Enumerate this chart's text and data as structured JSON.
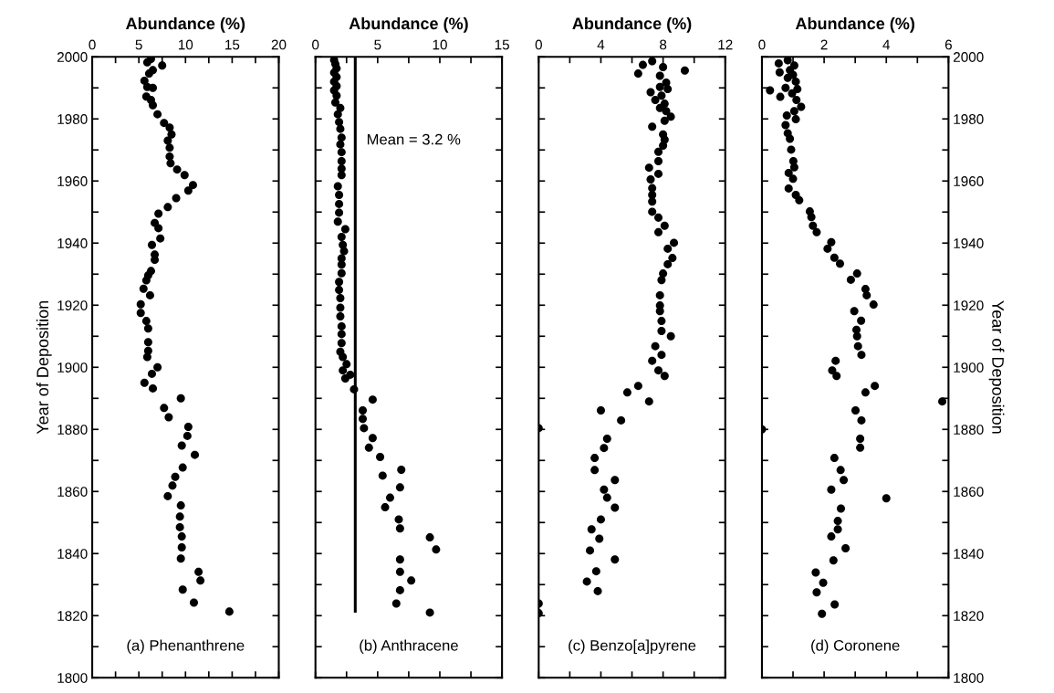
{
  "chart_data": [
    {
      "type": "scatter",
      "xlabel": "Abundance (%)",
      "ylabel": "Year of Deposition",
      "xlim": [
        0,
        20
      ],
      "xticks": [
        0,
        {
          "value": 2.5,
          "label": null
        },
        5,
        {
          "value": 7.5,
          "label": null
        },
        10,
        {
          "value": 12.5,
          "label": null
        },
        15,
        {
          "value": 17.5,
          "label": null
        },
        20
      ],
      "ylim": [
        1800,
        2000
      ],
      "yticks": [
        1800,
        {
          "value": 1810,
          "label": null
        },
        1820,
        {
          "value": 1830,
          "label": null
        },
        1840,
        {
          "value": 1850,
          "label": null
        },
        1860,
        {
          "value": 1870,
          "label": null
        },
        1880,
        {
          "value": 1890,
          "label": null
        },
        1900,
        {
          "value": 1910,
          "label": null
        },
        1920,
        {
          "value": 1930,
          "label": null
        },
        1940,
        {
          "value": 1950,
          "label": null
        },
        1960,
        {
          "value": 1970,
          "label": null
        },
        1980,
        {
          "value": 1990,
          "label": null
        },
        2000
      ],
      "marker": "circle",
      "grid": false,
      "annotations": [
        "(a) Phenanthrene"
      ],
      "series": [
        {
          "color": "#000000",
          "x": [
            6.3,
            5.9,
            7.5,
            6.5,
            6.1,
            5.6,
            6.5,
            5.9,
            5.8,
            6.3,
            6.5,
            7.0,
            7.7,
            8.3,
            8.5,
            8.1,
            8.3,
            8.3,
            8.4,
            9.1,
            9.9,
            10.8,
            10.3,
            9.0,
            8.1,
            7.1,
            6.7,
            7.1,
            7.3,
            6.4,
            6.7,
            6.7,
            6.3,
            6.0,
            5.8,
            5.5,
            6.2,
            5.2,
            5.2,
            5.8,
            6.0,
            6.0,
            6.0,
            5.9,
            7.0,
            6.4,
            5.6,
            6.5,
            9.5,
            7.7,
            8.2,
            10.3,
            10.2,
            9.6,
            11.0,
            9.7,
            8.9,
            8.6,
            8.1,
            9.5,
            9.4,
            9.4,
            9.6,
            9.6,
            9.5,
            11.4,
            11.6,
            9.7,
            10.9,
            14.7
          ],
          "values": [
            1999.3,
            1998.2,
            1997.2,
            1995.7,
            1994.6,
            1992.3,
            1990.0,
            1990.3,
            1987.2,
            1986.1,
            1984.4,
            1981.5,
            1978.7,
            1977.2,
            1975.0,
            1973.0,
            1970.7,
            1967.9,
            1965.7,
            1963.7,
            1961.9,
            1958.7,
            1956.9,
            1954.5,
            1951.6,
            1949.5,
            1946.5,
            1944.8,
            1941.5,
            1939.4,
            1936.3,
            1934.6,
            1931.0,
            1929.6,
            1928.0,
            1925.3,
            1923.2,
            1920.3,
            1917.5,
            1914.9,
            1912.5,
            1908.1,
            1905.3,
            1903.3,
            1900.0,
            1897.9,
            1895.0,
            1893.2,
            1890.0,
            1886.9,
            1883.9,
            1880.8,
            1877.9,
            1874.8,
            1871.8,
            1867.7,
            1864.7,
            1861.9,
            1858.5,
            1855.5,
            1851.9,
            1848.5,
            1845.5,
            1842.0,
            1838.4,
            1834.1,
            1831.3,
            1828.4,
            1824.2,
            1821.3
          ]
        }
      ]
    },
    {
      "type": "scatter",
      "xlabel": "Abundance (%)",
      "tick_labels": "x",
      "xlim": [
        0,
        15
      ],
      "xticks": [
        0,
        {
          "value": 2.5,
          "label": null
        },
        5,
        {
          "value": 7.5,
          "label": null
        },
        10,
        {
          "value": 12.5,
          "label": null
        },
        15
      ],
      "ylim": [
        1800,
        2000
      ],
      "yticks": [
        1800,
        {
          "value": 1810,
          "label": null
        },
        1820,
        {
          "value": 1830,
          "label": null
        },
        1840,
        {
          "value": 1850,
          "label": null
        },
        1860,
        {
          "value": 1870,
          "label": null
        },
        1880,
        {
          "value": 1890,
          "label": null
        },
        1900,
        {
          "value": 1910,
          "label": null
        },
        1920,
        {
          "value": 1930,
          "label": null
        },
        1940,
        {
          "value": 1950,
          "label": null
        },
        1960,
        {
          "value": 1970,
          "label": null
        },
        1980,
        {
          "value": 1990,
          "label": null
        },
        2000
      ],
      "marker": "circle",
      "grid": false,
      "annotations": [
        "(b) Anthracene"
      ],
      "ref_lines": [
        {
          "axis": "x",
          "value": 3.2,
          "label": "Mean = 3.2 %",
          "color": "#000000",
          "line_style": "solid"
        }
      ],
      "series": [
        {
          "color": "#000000",
          "x": [
            1.5,
            1.6,
            1.7,
            1.5,
            1.7,
            1.5,
            1.7,
            1.5,
            1.7,
            1.6,
            2.0,
            1.8,
            1.9,
            2.0,
            2.1,
            2.0,
            2.1,
            2.1,
            2.1,
            2.1,
            1.8,
            1.9,
            1.9,
            1.9,
            1.8,
            2.4,
            2.1,
            2.2,
            2.3,
            2.1,
            2.1,
            2.1,
            1.9,
            1.9,
            2.0,
            2.0,
            2.0,
            2.1,
            2.1,
            2.1,
            2.0,
            2.2,
            2.5,
            2.2,
            2.8,
            2.4,
            3.1,
            4.6,
            3.8,
            3.8,
            3.9,
            4.6,
            4.3,
            5.2,
            6.9,
            5.4,
            6.8,
            6.0,
            5.6,
            6.7,
            6.8,
            9.2,
            9.7,
            6.8,
            6.8,
            7.7,
            6.8,
            6.5,
            9.2
          ],
          "values": [
            1999.0,
            1997.7,
            1996.3,
            1994.9,
            1993.5,
            1992.0,
            1990.6,
            1989.2,
            1987.5,
            1985.3,
            1983.5,
            1981.5,
            1979.0,
            1976.8,
            1974.0,
            1971.8,
            1969.3,
            1966.4,
            1964.0,
            1961.9,
            1958.3,
            1955.5,
            1952.6,
            1949.8,
            1946.9,
            1944.5,
            1942.0,
            1939.4,
            1937.4,
            1935.1,
            1933.1,
            1930.3,
            1927.5,
            1924.9,
            1922.3,
            1919.2,
            1916.4,
            1913.2,
            1910.7,
            1907.8,
            1905.0,
            1903.3,
            1901.0,
            1899.0,
            1897.6,
            1896.4,
            1892.9,
            1889.6,
            1886.1,
            1883.4,
            1880.4,
            1877.2,
            1874.1,
            1871.1,
            1867.0,
            1865.1,
            1861.3,
            1858.0,
            1854.9,
            1851.0,
            1848.1,
            1845.2,
            1841.3,
            1838.1,
            1834.1,
            1831.3,
            1828.2,
            1823.9,
            1821.0
          ]
        }
      ]
    },
    {
      "type": "scatter",
      "xlabel": "Abundance (%)",
      "tick_labels": "x",
      "xlim": [
        0,
        12
      ],
      "xticks": [
        0,
        {
          "value": 2,
          "label": null
        },
        4,
        {
          "value": 6,
          "label": null
        },
        8,
        {
          "value": 10,
          "label": null
        },
        12
      ],
      "ylim": [
        1800,
        2000
      ],
      "yticks": [
        1800,
        {
          "value": 1810,
          "label": null
        },
        1820,
        {
          "value": 1830,
          "label": null
        },
        1840,
        {
          "value": 1850,
          "label": null
        },
        1860,
        {
          "value": 1870,
          "label": null
        },
        1880,
        {
          "value": 1890,
          "label": null
        },
        1900,
        {
          "value": 1910,
          "label": null
        },
        1920,
        {
          "value": 1930,
          "label": null
        },
        1940,
        {
          "value": 1950,
          "label": null
        },
        1960,
        {
          "value": 1970,
          "label": null
        },
        1980,
        {
          "value": 1990,
          "label": null
        },
        2000
      ],
      "marker": "circle",
      "grid": false,
      "annotations": [
        "(c) Benzo[a]pyrene"
      ],
      "series": [
        {
          "color": "#000000",
          "x": [
            7.3,
            6.7,
            9.4,
            6.4,
            8.0,
            7.8,
            8.2,
            7.8,
            8.3,
            7.2,
            7.9,
            7.5,
            8.1,
            7.8,
            8.2,
            8.5,
            8.1,
            7.3,
            8.0,
            8.1,
            8.0,
            7.7,
            7.7,
            7.1,
            7.2,
            7.7,
            7.3,
            7.3,
            7.3,
            7.3,
            7.7,
            8.1,
            7.7,
            8.7,
            8.3,
            8.6,
            8.3,
            8.0,
            7.9,
            7.8,
            7.8,
            7.8,
            7.9,
            7.9,
            8.5,
            7.5,
            7.9,
            7.3,
            7.7,
            8.1,
            6.4,
            5.7,
            7.1,
            4.0,
            5.3,
            0,
            4.4,
            4.2,
            3.6,
            3.6,
            4.9,
            4.2,
            4.4,
            4.9,
            4.0,
            3.4,
            3.9,
            3.3,
            4.9,
            3.7,
            3.1,
            3.8,
            0,
            0
          ],
          "values": [
            1998.6,
            1997.4,
            1995.6,
            1994.6,
            1996.7,
            1993.9,
            1991.7,
            1990.3,
            1989.6,
            1988.6,
            1987.5,
            1986.1,
            1984.9,
            1983.5,
            1982.5,
            1980.7,
            1979.4,
            1977.5,
            1975.0,
            1973.3,
            1971.4,
            1969.4,
            1966.4,
            1964.3,
            1960.5,
            1962.3,
            1957.7,
            1955.5,
            1953.4,
            1950.1,
            1948.2,
            1945.6,
            1943.5,
            1940.1,
            1938.2,
            1935.2,
            1933.2,
            1930.2,
            1928.1,
            1923.2,
            1919.9,
            1918.1,
            1914.9,
            1911.7,
            1910.0,
            1906.8,
            1904.0,
            1902.1,
            1899.0,
            1897.2,
            1894.0,
            1891.9,
            1889.0,
            1886.1,
            1882.9,
            1880.4,
            1877.0,
            1874.0,
            1870.8,
            1866.9,
            1863.7,
            1860.6,
            1858.0,
            1854.8,
            1851.0,
            1847.8,
            1844.8,
            1841.0,
            1838.1,
            1834.3,
            1831.0,
            1827.9,
            1823.9,
            1820.8
          ]
        }
      ]
    },
    {
      "type": "scatter",
      "xlabel": "Abundance (%)",
      "y2label": "Year of Deposition",
      "xlim": [
        0,
        6
      ],
      "xticks": [
        0,
        {
          "value": 1,
          "label": null
        },
        2,
        {
          "value": 3,
          "label": null
        },
        4,
        {
          "value": 5,
          "label": null
        },
        6
      ],
      "y2lim": [
        1800,
        2000
      ],
      "y2ticks": [
        1800,
        {
          "value": 1810,
          "label": null
        },
        1820,
        {
          "value": 1830,
          "label": null
        },
        1840,
        {
          "value": 1850,
          "label": null
        },
        1860,
        {
          "value": 1870,
          "label": null
        },
        1880,
        {
          "value": 1890,
          "label": null
        },
        1900,
        {
          "value": 1910,
          "label": null
        },
        1920,
        {
          "value": 1930,
          "label": null
        },
        1940,
        {
          "value": 1950,
          "label": null
        },
        1960,
        {
          "value": 1970,
          "label": null
        },
        1980,
        {
          "value": 1990,
          "label": null
        },
        2000
      ],
      "marker": "circle",
      "grid": false,
      "annotations": [
        "(d) Coronene"
      ],
      "series": [
        {
          "color": "#000000",
          "axis": "y2",
          "x": [
            0.83,
            0.54,
            1.04,
            0.9,
            0.57,
            1.0,
            0.83,
            1.09,
            0.26,
            0.76,
            1.14,
            0.97,
            0.59,
            1.11,
            1.26,
            1.04,
            1.09,
            0.8,
            0.76,
            0.83,
            0.9,
            0.94,
            1.01,
            1.04,
            0.86,
            1.0,
            0.86,
            1.09,
            1.2,
            1.54,
            1.59,
            1.64,
            1.76,
            2.23,
            2.11,
            2.33,
            2.51,
            3.06,
            2.86,
            3.33,
            3.37,
            3.59,
            2.97,
            3.19,
            3.04,
            3.06,
            3.09,
            3.2,
            2.37,
            2.26,
            2.4,
            3.63,
            3.33,
            5.8,
            3.01,
            3.2,
            0,
            3.16,
            3.16,
            2.33,
            2.53,
            2.63,
            2.23,
            4.0,
            2.54,
            2.44,
            2.44,
            2.23,
            2.69,
            2.3,
            1.73,
            1.97,
            1.76,
            2.34,
            1.93
          ],
          "values": [
            1998.9,
            1997.9,
            1997.2,
            1995.7,
            1995.0,
            1994.2,
            1993.2,
            1992.0,
            1989.2,
            1990.0,
            1989.6,
            1988.2,
            1987.1,
            1986.1,
            1983.9,
            1982.5,
            1979.9,
            1981.1,
            1978.0,
            1975.4,
            1973.6,
            1970.1,
            1966.4,
            1964.4,
            1962.6,
            1960.7,
            1957.6,
            1955.5,
            1953.8,
            1950.2,
            1948.4,
            1945.6,
            1943.5,
            1940.3,
            1938.2,
            1935.3,
            1933.4,
            1930.2,
            1928.2,
            1925.2,
            1923.2,
            1920.2,
            1918.1,
            1915.0,
            1912.1,
            1910.0,
            1906.8,
            1904.0,
            1902.1,
            1899.0,
            1897.2,
            1894.0,
            1891.9,
            1889.0,
            1886.1,
            1882.9,
            1880.0,
            1877.0,
            1874.1,
            1870.8,
            1866.9,
            1863.7,
            1860.6,
            1857.8,
            1854.5,
            1850.5,
            1847.8,
            1845.5,
            1841.7,
            1837.8,
            1833.9,
            1830.6,
            1827.5,
            1823.6,
            1820.6
          ]
        }
      ]
    }
  ]
}
